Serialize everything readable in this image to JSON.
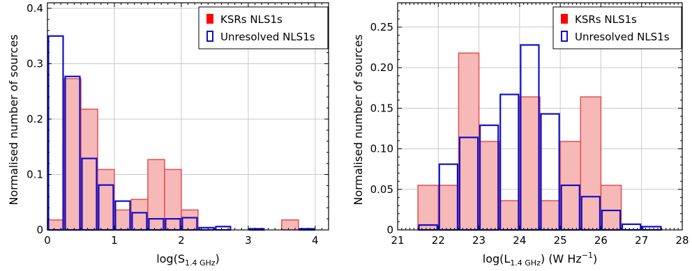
{
  "chart_data": [
    {
      "type": "bar",
      "xlabel": "log(S",
      "xlabel_sub": "1.4 GHz",
      "xlabel_tail": ")",
      "ylabel": "Normalised number of sources",
      "xlim": [
        0,
        4.2
      ],
      "ylim": [
        0,
        0.41
      ],
      "xticks": [
        0,
        1,
        2,
        3,
        4
      ],
      "xtick_labels": [
        "0",
        "1",
        "2",
        "3",
        "4"
      ],
      "yticks": [
        0,
        0.1,
        0.2,
        0.3,
        0.4
      ],
      "ytick_labels": [
        "0",
        "0.1",
        "0.2",
        "0.3",
        "0.4"
      ],
      "grid": true,
      "legend_position": "top-right",
      "series": [
        {
          "name": "KSRs NLS1s",
          "style": "filled",
          "color": "#e05050",
          "fill": "#f7b8b8",
          "bins": [
            [
              0.0,
              0.25,
              0.018
            ],
            [
              0.25,
              0.5,
              0.273
            ],
            [
              0.5,
              0.75,
              0.218
            ],
            [
              0.75,
              1.0,
              0.109
            ],
            [
              1.0,
              1.25,
              0.036
            ],
            [
              1.25,
              1.5,
              0.055
            ],
            [
              1.5,
              1.75,
              0.127
            ],
            [
              1.75,
              2.0,
              0.109
            ],
            [
              2.0,
              2.25,
              0.036
            ],
            [
              3.5,
              3.75,
              0.018
            ]
          ]
        },
        {
          "name": "Unresolved NLS1s",
          "style": "outline",
          "color": "#1010c8",
          "bins": [
            [
              0.0,
              0.25,
              0.35
            ],
            [
              0.25,
              0.5,
              0.277
            ],
            [
              0.5,
              0.75,
              0.129
            ],
            [
              0.75,
              1.0,
              0.081
            ],
            [
              1.0,
              1.25,
              0.052
            ],
            [
              1.25,
              1.5,
              0.031
            ],
            [
              1.5,
              1.75,
              0.02
            ],
            [
              1.75,
              2.0,
              0.02
            ],
            [
              2.0,
              2.25,
              0.022
            ],
            [
              2.25,
              2.5,
              0.004
            ],
            [
              2.5,
              2.75,
              0.006
            ],
            [
              3.0,
              3.25,
              0.002
            ],
            [
              3.75,
              4.0,
              0.002
            ]
          ]
        }
      ]
    },
    {
      "type": "bar",
      "xlabel": "log(L",
      "xlabel_sub": "1.4 GHz",
      "xlabel_tail": ") (W Hz",
      "xlabel_sup": "−1",
      "xlabel_end": ")",
      "ylabel": "Normalised number of sources",
      "xlim": [
        21,
        28
      ],
      "ylim": [
        0,
        0.28
      ],
      "xticks": [
        21,
        22,
        23,
        24,
        25,
        26,
        27,
        28
      ],
      "xtick_labels": [
        "21",
        "22",
        "23",
        "24",
        "25",
        "26",
        "27",
        "28"
      ],
      "yticks": [
        0,
        0.05,
        0.1,
        0.15,
        0.2,
        0.25
      ],
      "ytick_labels": [
        "0",
        "0.05",
        "0.10",
        "0.15",
        "0.20",
        "0.25"
      ],
      "grid": true,
      "legend_position": "top-right",
      "series": [
        {
          "name": "KSRs NLS1s",
          "style": "filled",
          "color": "#e05050",
          "fill": "#f7b8b8",
          "bins": [
            [
              21.5,
              22.0,
              0.055
            ],
            [
              22.0,
              22.5,
              0.055
            ],
            [
              22.5,
              23.0,
              0.218
            ],
            [
              23.0,
              23.5,
              0.109
            ],
            [
              23.5,
              24.0,
              0.036
            ],
            [
              24.0,
              24.5,
              0.164
            ],
            [
              24.5,
              25.0,
              0.036
            ],
            [
              25.0,
              25.5,
              0.109
            ],
            [
              25.5,
              26.0,
              0.164
            ],
            [
              26.0,
              26.5,
              0.055
            ]
          ]
        },
        {
          "name": "Unresolved NLS1s",
          "style": "outline",
          "color": "#1010c8",
          "bins": [
            [
              21.5,
              22.0,
              0.006
            ],
            [
              22.0,
              22.5,
              0.081
            ],
            [
              22.5,
              23.0,
              0.114
            ],
            [
              23.0,
              23.5,
              0.129
            ],
            [
              23.5,
              24.0,
              0.167
            ],
            [
              24.0,
              24.5,
              0.228
            ],
            [
              24.5,
              25.0,
              0.143
            ],
            [
              25.0,
              25.5,
              0.055
            ],
            [
              25.5,
              26.0,
              0.041
            ],
            [
              26.0,
              26.5,
              0.024
            ],
            [
              26.5,
              27.0,
              0.007
            ],
            [
              27.0,
              27.5,
              0.004
            ]
          ]
        }
      ]
    }
  ]
}
